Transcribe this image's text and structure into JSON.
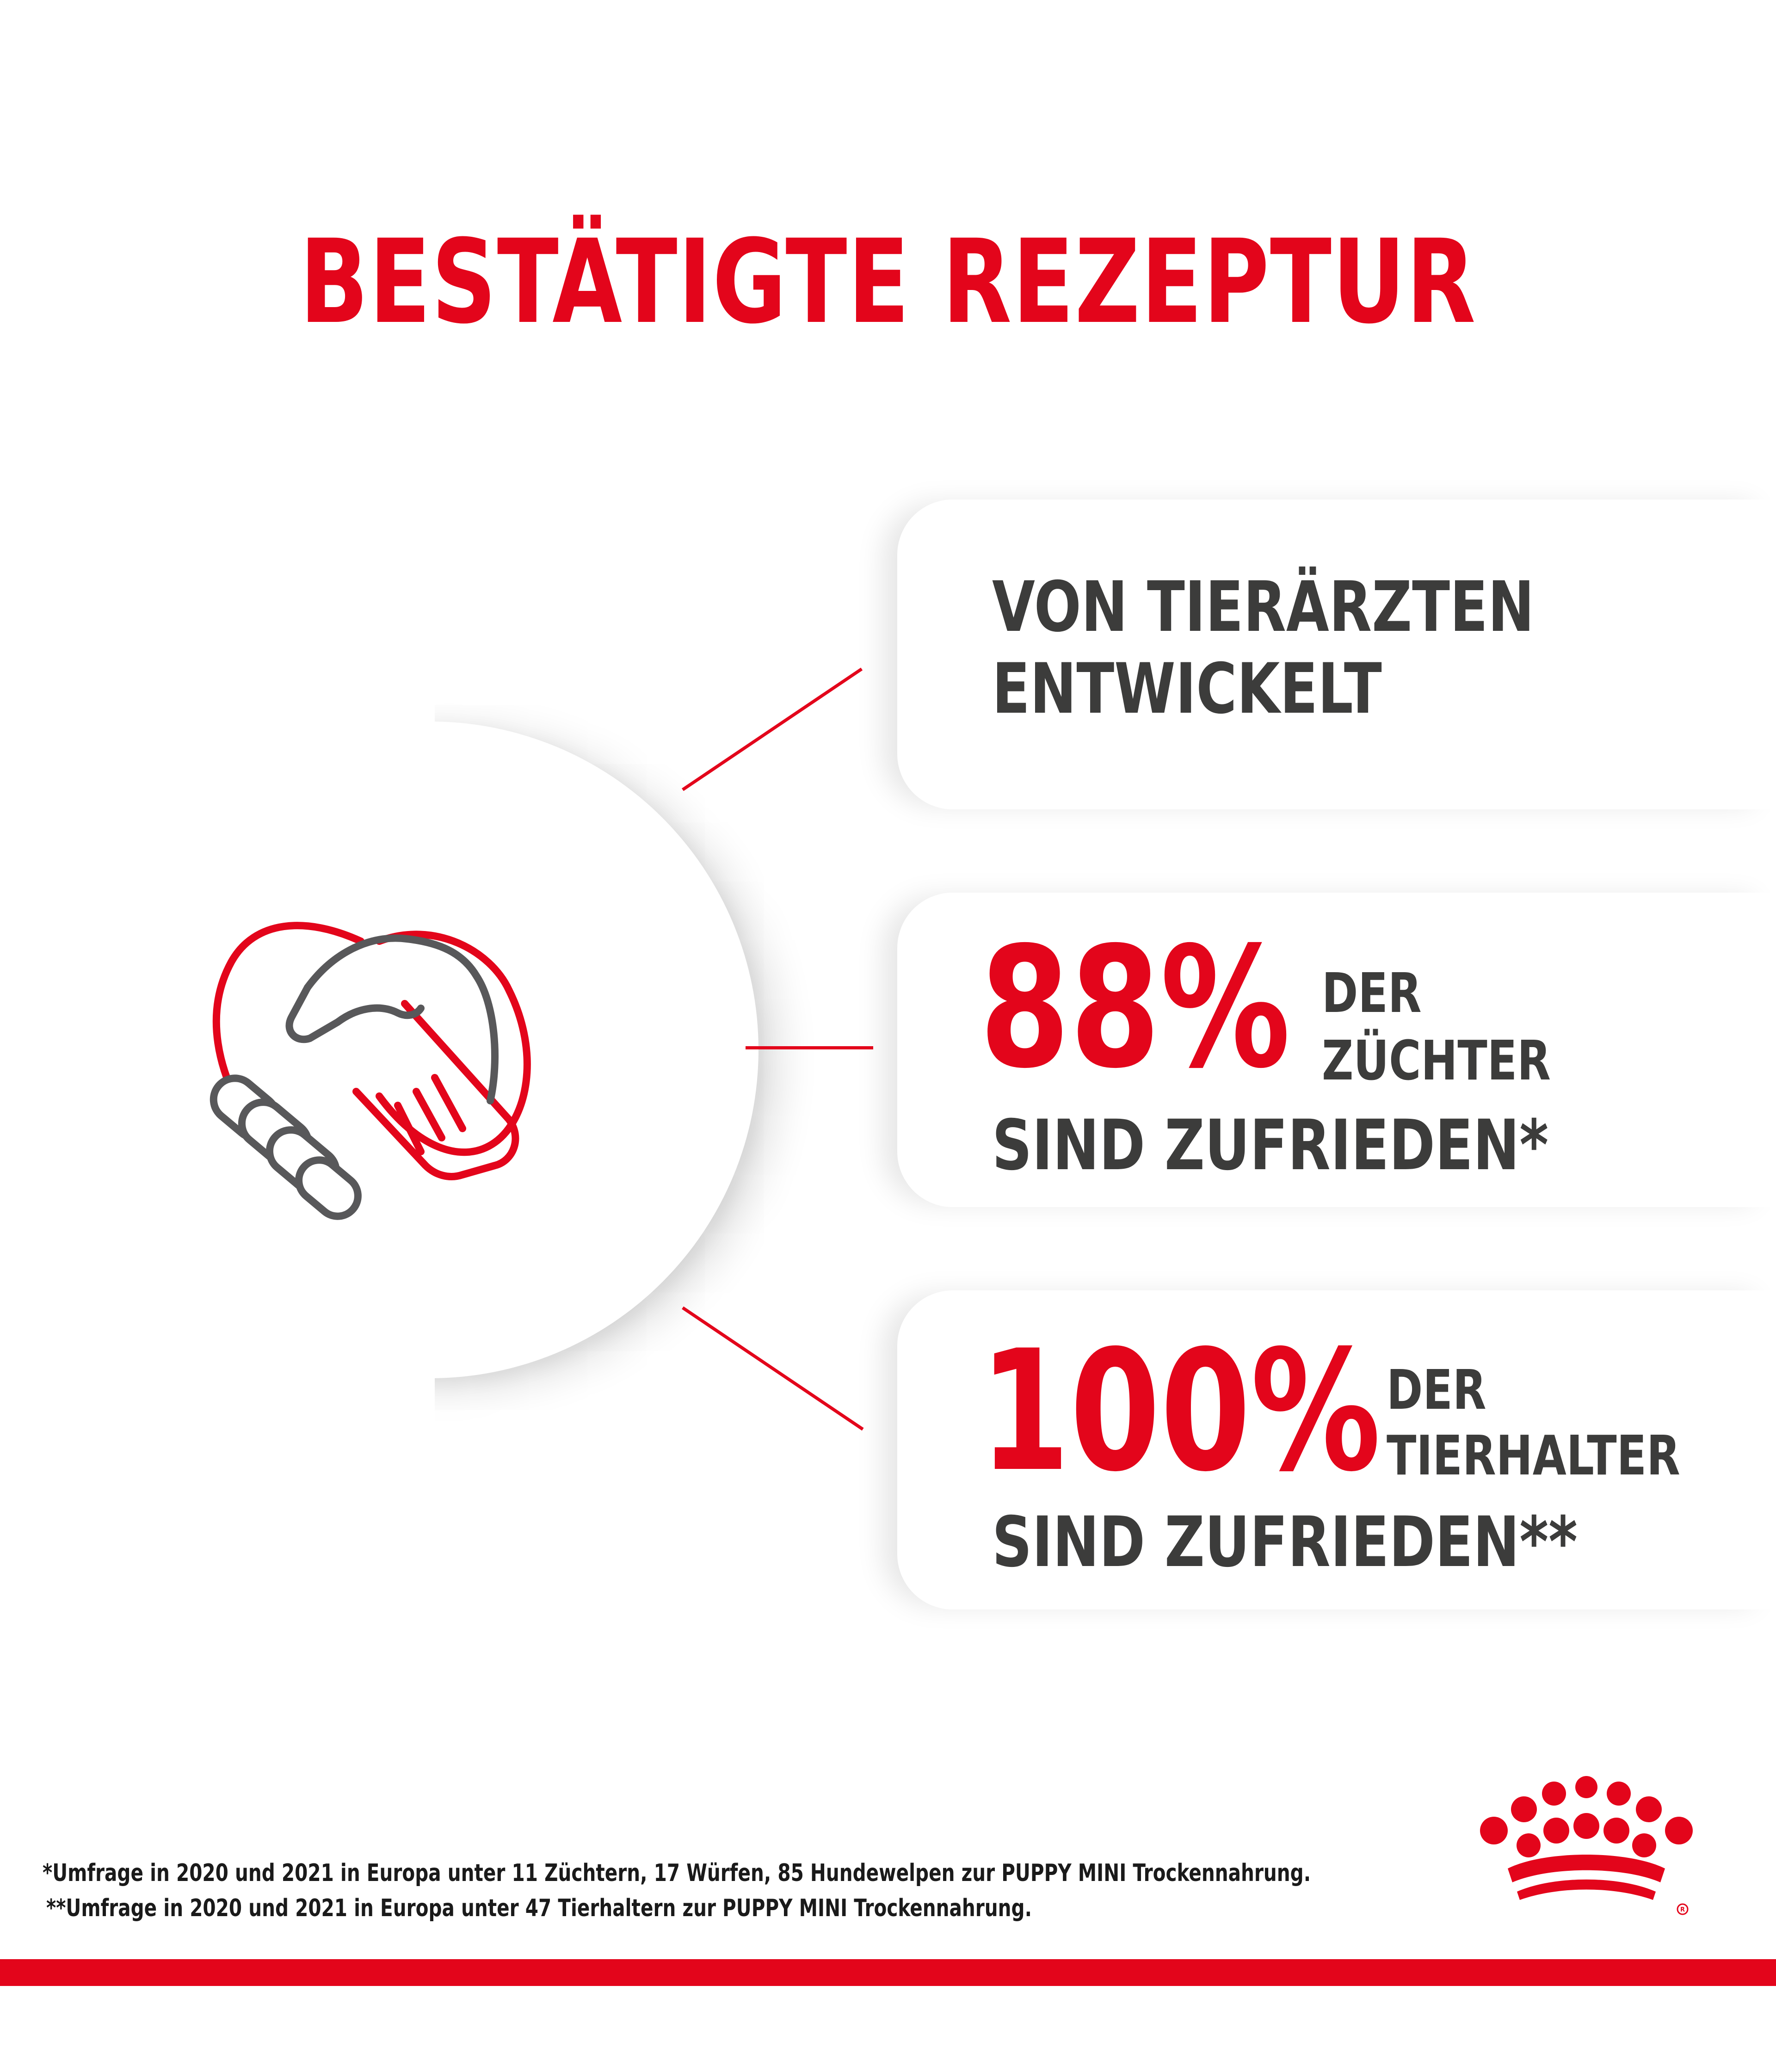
{
  "title": "BESTÄTIGTE REZEPTUR",
  "icon": "handshake-heart-icon",
  "logo": "royal-canin-crown-logo",
  "colors": {
    "accent": "#e3051b",
    "text": "#3c3c3b",
    "icon_gray": "#58585a"
  },
  "claims": [
    {
      "line1": "VON TIERÄRZTEN",
      "line2": "ENTWICKELT"
    },
    {
      "percent": "88%",
      "line1": "DER",
      "line2": "ZÜCHTER",
      "line3": "SIND ZUFRIEDEN*"
    },
    {
      "percent": "100%",
      "line1": "DER",
      "line2": "TIERHALTER",
      "line3": "SIND ZUFRIEDEN**"
    }
  ],
  "footnotes": [
    "*Umfrage in 2020 und 2021 in Europa unter 11 Züchtern, 17 Würfen, 85 Hundewelpen zur PUPPY MINI Trockennahrung.",
    "**Umfrage in 2020 und 2021 in Europa unter 47 Tierhaltern zur PUPPY MINI Trockennahrung."
  ]
}
